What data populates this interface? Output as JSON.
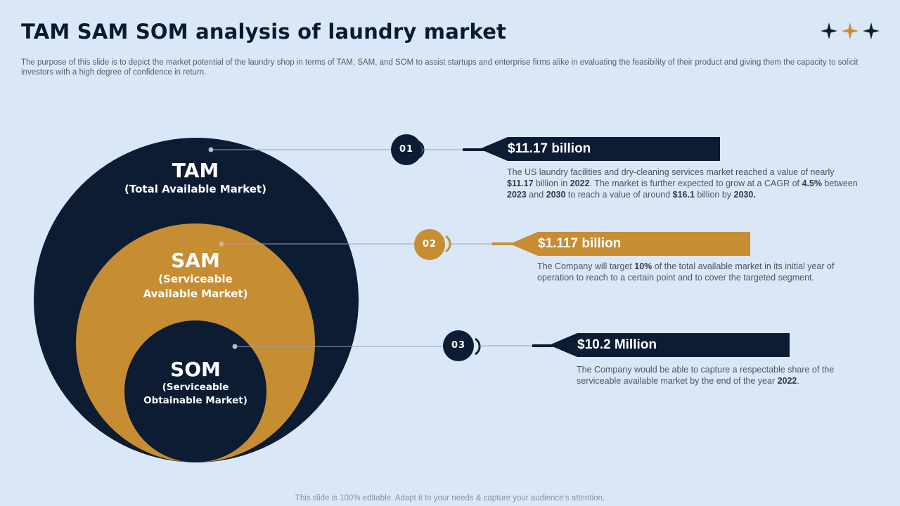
{
  "title": "TAM SAM SOM analysis of laundry market",
  "subtitle": "The purpose of this slide is to depict the market potential of the laundry shop in terms of TAM,  SAM,  and SOM  to assist startups and enterprise firms alike in evaluating the feasibility of their product and giving them the capacity to solicit investors with a high degree of confidence in return.",
  "colors": {
    "navy": "#0c1c33",
    "gold": "#c68d33",
    "background": "#d9e7f6"
  },
  "circles": {
    "tam": {
      "abbr": "TAM",
      "full": "(Total Available Market)"
    },
    "sam": {
      "abbr": "SAM",
      "full_line1": "(Serviceable",
      "full_line2": "Available Market)"
    },
    "som": {
      "abbr": "SOM",
      "full_line1": "(Serviceable",
      "full_line2": "Obtainable Market)"
    }
  },
  "items": [
    {
      "number": "01",
      "value": "$11.17 billion",
      "desc": [
        {
          "t": "The US laundry facilities and dry-cleaning services  market reached  a value  of nearly "
        },
        {
          "t": "$11.17",
          "b": true
        },
        {
          "t": " billion in "
        },
        {
          "t": "2022",
          "b": true
        },
        {
          "t": ". The  market is further  expected to grow  at a CAGR of "
        },
        {
          "t": "4.5%",
          "b": true
        },
        {
          "t": " between  "
        },
        {
          "t": "2023",
          "b": true
        },
        {
          "t": " and "
        },
        {
          "t": "2030",
          "b": true
        },
        {
          "t": " to reach  a value  of around  "
        },
        {
          "t": "$16.1",
          "b": true
        },
        {
          "t": " billion by "
        },
        {
          "t": "2030.",
          "b": true
        }
      ]
    },
    {
      "number": "02",
      "value": "$1.117 billion",
      "desc": [
        {
          "t": "The Company  will target "
        },
        {
          "t": "10%",
          "b": true
        },
        {
          "t": " of the total available  market in its initial year of operation  to reach to a certain point  and to cover  the targeted segment."
        }
      ]
    },
    {
      "number": "03",
      "value": "$10.2 Million",
      "desc": [
        {
          "t": "The Company  would  be able to capture a respectable share of the serviceable  available  market by the end of the year "
        },
        {
          "t": "2022",
          "b": true
        },
        {
          "t": "."
        }
      ]
    }
  ],
  "footer": "This slide is 100% editable. Adapt it to your needs & capture your audience’s attention."
}
